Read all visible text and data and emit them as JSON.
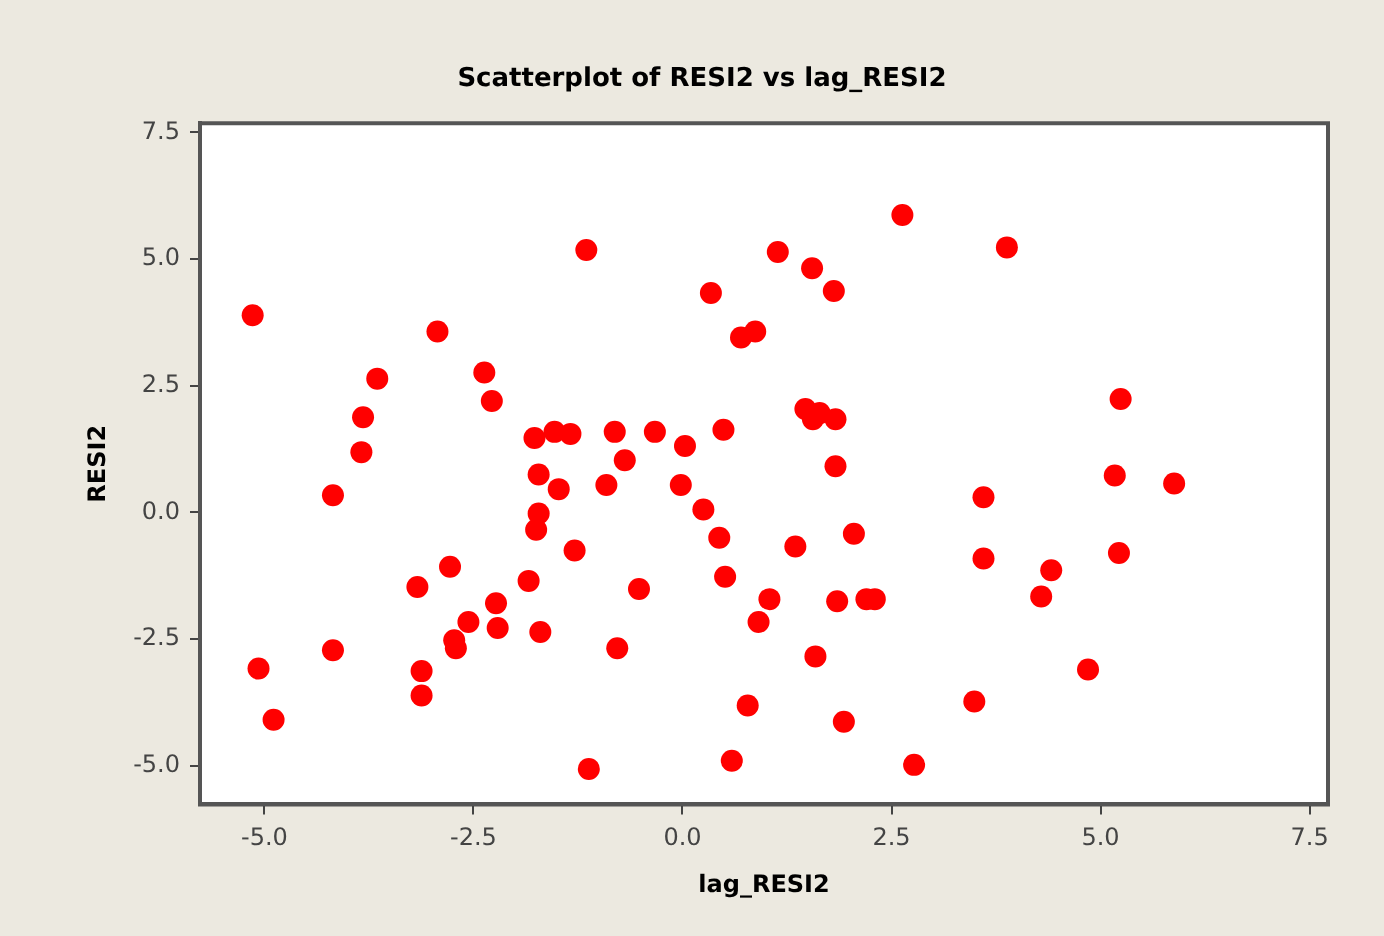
{
  "chart_data": {
    "type": "scatter",
    "title": "Scatterplot of RESI2 vs lag_RESI2",
    "xlabel": "lag_RESI2",
    "ylabel": "RESI2",
    "marker": "circle",
    "grid": false,
    "legend": false,
    "xlim": [
      -5.77,
      7.72
    ],
    "xticks": [
      {
        "value": -5,
        "label": "-5.0"
      },
      {
        "value": -2.5,
        "label": "-2.5"
      },
      {
        "value": 0,
        "label": "0.0"
      },
      {
        "value": 2.5,
        "label": "2.5"
      },
      {
        "value": 5,
        "label": "5.0"
      },
      {
        "value": 7.5,
        "label": "7.5"
      }
    ],
    "ylim": [
      -5.76,
      7.68
    ],
    "yticks": [
      {
        "value": -5,
        "label": "-5.0"
      },
      {
        "value": -2.5,
        "label": "-2.5"
      },
      {
        "value": 0,
        "label": "0.0"
      },
      {
        "value": 2.5,
        "label": "2.5"
      },
      {
        "value": 5,
        "label": "5.0"
      },
      {
        "value": 7.5,
        "label": "7.5"
      }
    ],
    "series": [
      {
        "color": "#ff0000",
        "x": [
          -5.14,
          -5.07,
          -4.89,
          -4.18,
          -4.18,
          -3.84,
          -3.82,
          -3.65,
          -3.17,
          -3.12,
          -3.12,
          -2.93,
          -2.78,
          -2.73,
          -2.71,
          -2.56,
          -2.37,
          -2.28,
          -2.23,
          -2.21,
          -1.84,
          -1.77,
          -1.75,
          -1.72,
          -1.72,
          -1.7,
          -1.53,
          -1.48,
          -1.34,
          -1.29,
          -1.15,
          -1.12,
          -0.91,
          -0.81,
          -0.78,
          -0.69,
          -0.52,
          -0.33,
          -0.02,
          0.03,
          0.25,
          0.34,
          0.44,
          0.49,
          0.51,
          0.59,
          0.7,
          0.78,
          0.87,
          0.91,
          1.04,
          1.14,
          1.35,
          1.47,
          1.55,
          1.56,
          1.59,
          1.64,
          1.83,
          1.83,
          1.81,
          1.85,
          1.93,
          2.05,
          2.2,
          2.3,
          2.63,
          2.77,
          3.49,
          3.6,
          3.6,
          4.29,
          4.41,
          3.88,
          4.85,
          5.17,
          5.22,
          5.88,
          5.24
        ],
        "values": [
          3.89,
          -3.08,
          -4.09,
          0.34,
          -2.72,
          1.19,
          1.88,
          2.64,
          -1.47,
          -3.13,
          -3.61,
          3.57,
          -1.07,
          -2.52,
          -2.68,
          -2.16,
          2.76,
          2.2,
          -1.79,
          -2.28,
          -1.35,
          1.47,
          -0.34,
          -0.02,
          0.75,
          -2.36,
          1.59,
          0.46,
          1.55,
          -0.75,
          5.18,
          -5.06,
          0.54,
          1.59,
          -2.68,
          1.03,
          -1.51,
          1.59,
          0.54,
          1.31,
          0.06,
          4.33,
          -0.5,
          1.63,
          -1.27,
          -4.9,
          3.45,
          -3.81,
          3.57,
          -2.16,
          -1.71,
          5.14,
          -0.67,
          2.04,
          4.82,
          1.84,
          -2.84,
          1.96,
          0.91,
          1.84,
          4.37,
          -1.75,
          -4.13,
          -0.42,
          -1.71,
          -1.71,
          5.87,
          -4.98,
          -3.73,
          0.3,
          -0.91,
          -1.66,
          -1.14,
          5.23,
          -3.1,
          0.73,
          -0.8,
          0.57,
          2.24
        ]
      }
    ]
  }
}
